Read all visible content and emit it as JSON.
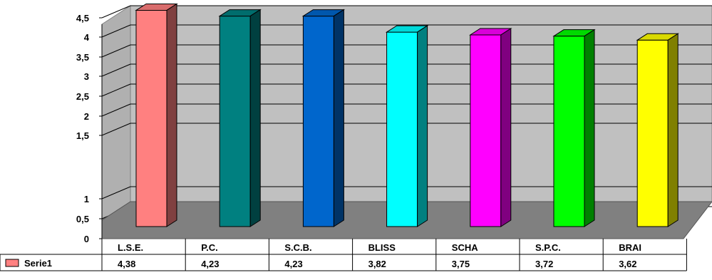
{
  "chart_data": {
    "type": "bar",
    "categories": [
      "L.S.E.",
      "P.C.",
      "S.C.B.",
      "BLISS",
      "SCHA",
      "S.P.C.",
      "BRAI"
    ],
    "series": [
      {
        "name": "Serie1",
        "values": [
          4.38,
          4.23,
          4.23,
          3.82,
          3.75,
          3.72,
          3.62
        ],
        "value_labels": [
          "4,38",
          "4,23",
          "4,23",
          "3,82",
          "3,75",
          "3,72",
          "3,62"
        ],
        "colors": [
          "#FF8080",
          "#008080",
          "#0066CC",
          "#00FFFF",
          "#FF00FF",
          "#00FF00",
          "#FFFF00"
        ]
      }
    ],
    "y_ticks": [
      {
        "value": 0,
        "label": "0"
      },
      {
        "value": 0.5,
        "label": "0,5"
      },
      {
        "value": 1,
        "label": "1"
      },
      {
        "value": 1.5,
        "label": "1,5"
      },
      {
        "value": 2,
        "label": "2"
      },
      {
        "value": 2.5,
        "label": "2,5"
      },
      {
        "value": 3,
        "label": "3"
      },
      {
        "value": 3.5,
        "label": "3,5"
      },
      {
        "value": 4,
        "label": "4"
      },
      {
        "value": 4.5,
        "label": "4,5"
      }
    ],
    "ylim": [
      0,
      4.5
    ],
    "grid": true,
    "three_d": true,
    "data_table": true,
    "legend_key_color": "#FF8080",
    "wall_color": "#C0C0C0",
    "floor_color": "#808080",
    "title": "",
    "xlabel": "",
    "ylabel": ""
  }
}
